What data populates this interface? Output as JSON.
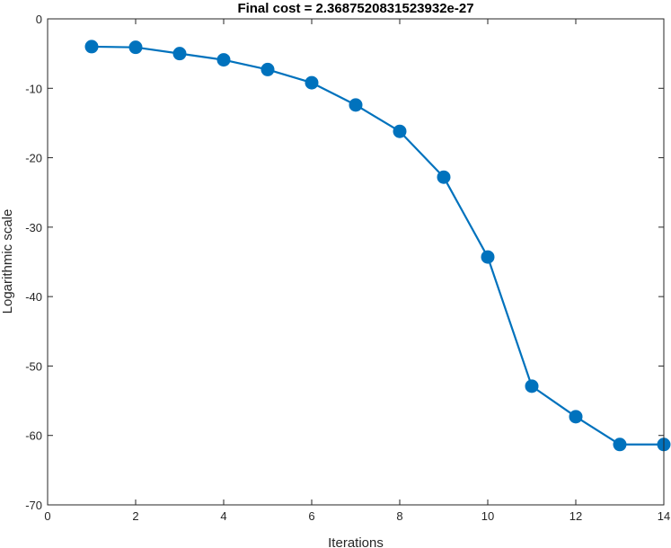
{
  "chart_data": {
    "type": "line",
    "title": "Final cost = 2.3687520831523932e-27",
    "xlabel": "Iterations",
    "ylabel": "Logarithmic scale",
    "xlim": [
      0,
      14
    ],
    "ylim": [
      -70,
      0
    ],
    "xticks": [
      0,
      2,
      4,
      6,
      8,
      10,
      12,
      14
    ],
    "yticks": [
      0,
      -10,
      -20,
      -30,
      -40,
      -50,
      -60,
      -70
    ],
    "grid": false,
    "box": true,
    "series": [
      {
        "x": [
          1,
          2,
          3,
          4,
          5,
          6,
          7,
          8,
          9,
          10,
          11,
          12,
          13,
          14
        ],
        "y": [
          -4.0,
          -4.1,
          -5.0,
          -5.9,
          -7.3,
          -9.2,
          -12.4,
          -16.2,
          -22.8,
          -34.3,
          -52.9,
          -57.3,
          -61.3,
          -61.3
        ],
        "color": "#0072BD",
        "marker": "circle"
      }
    ]
  }
}
